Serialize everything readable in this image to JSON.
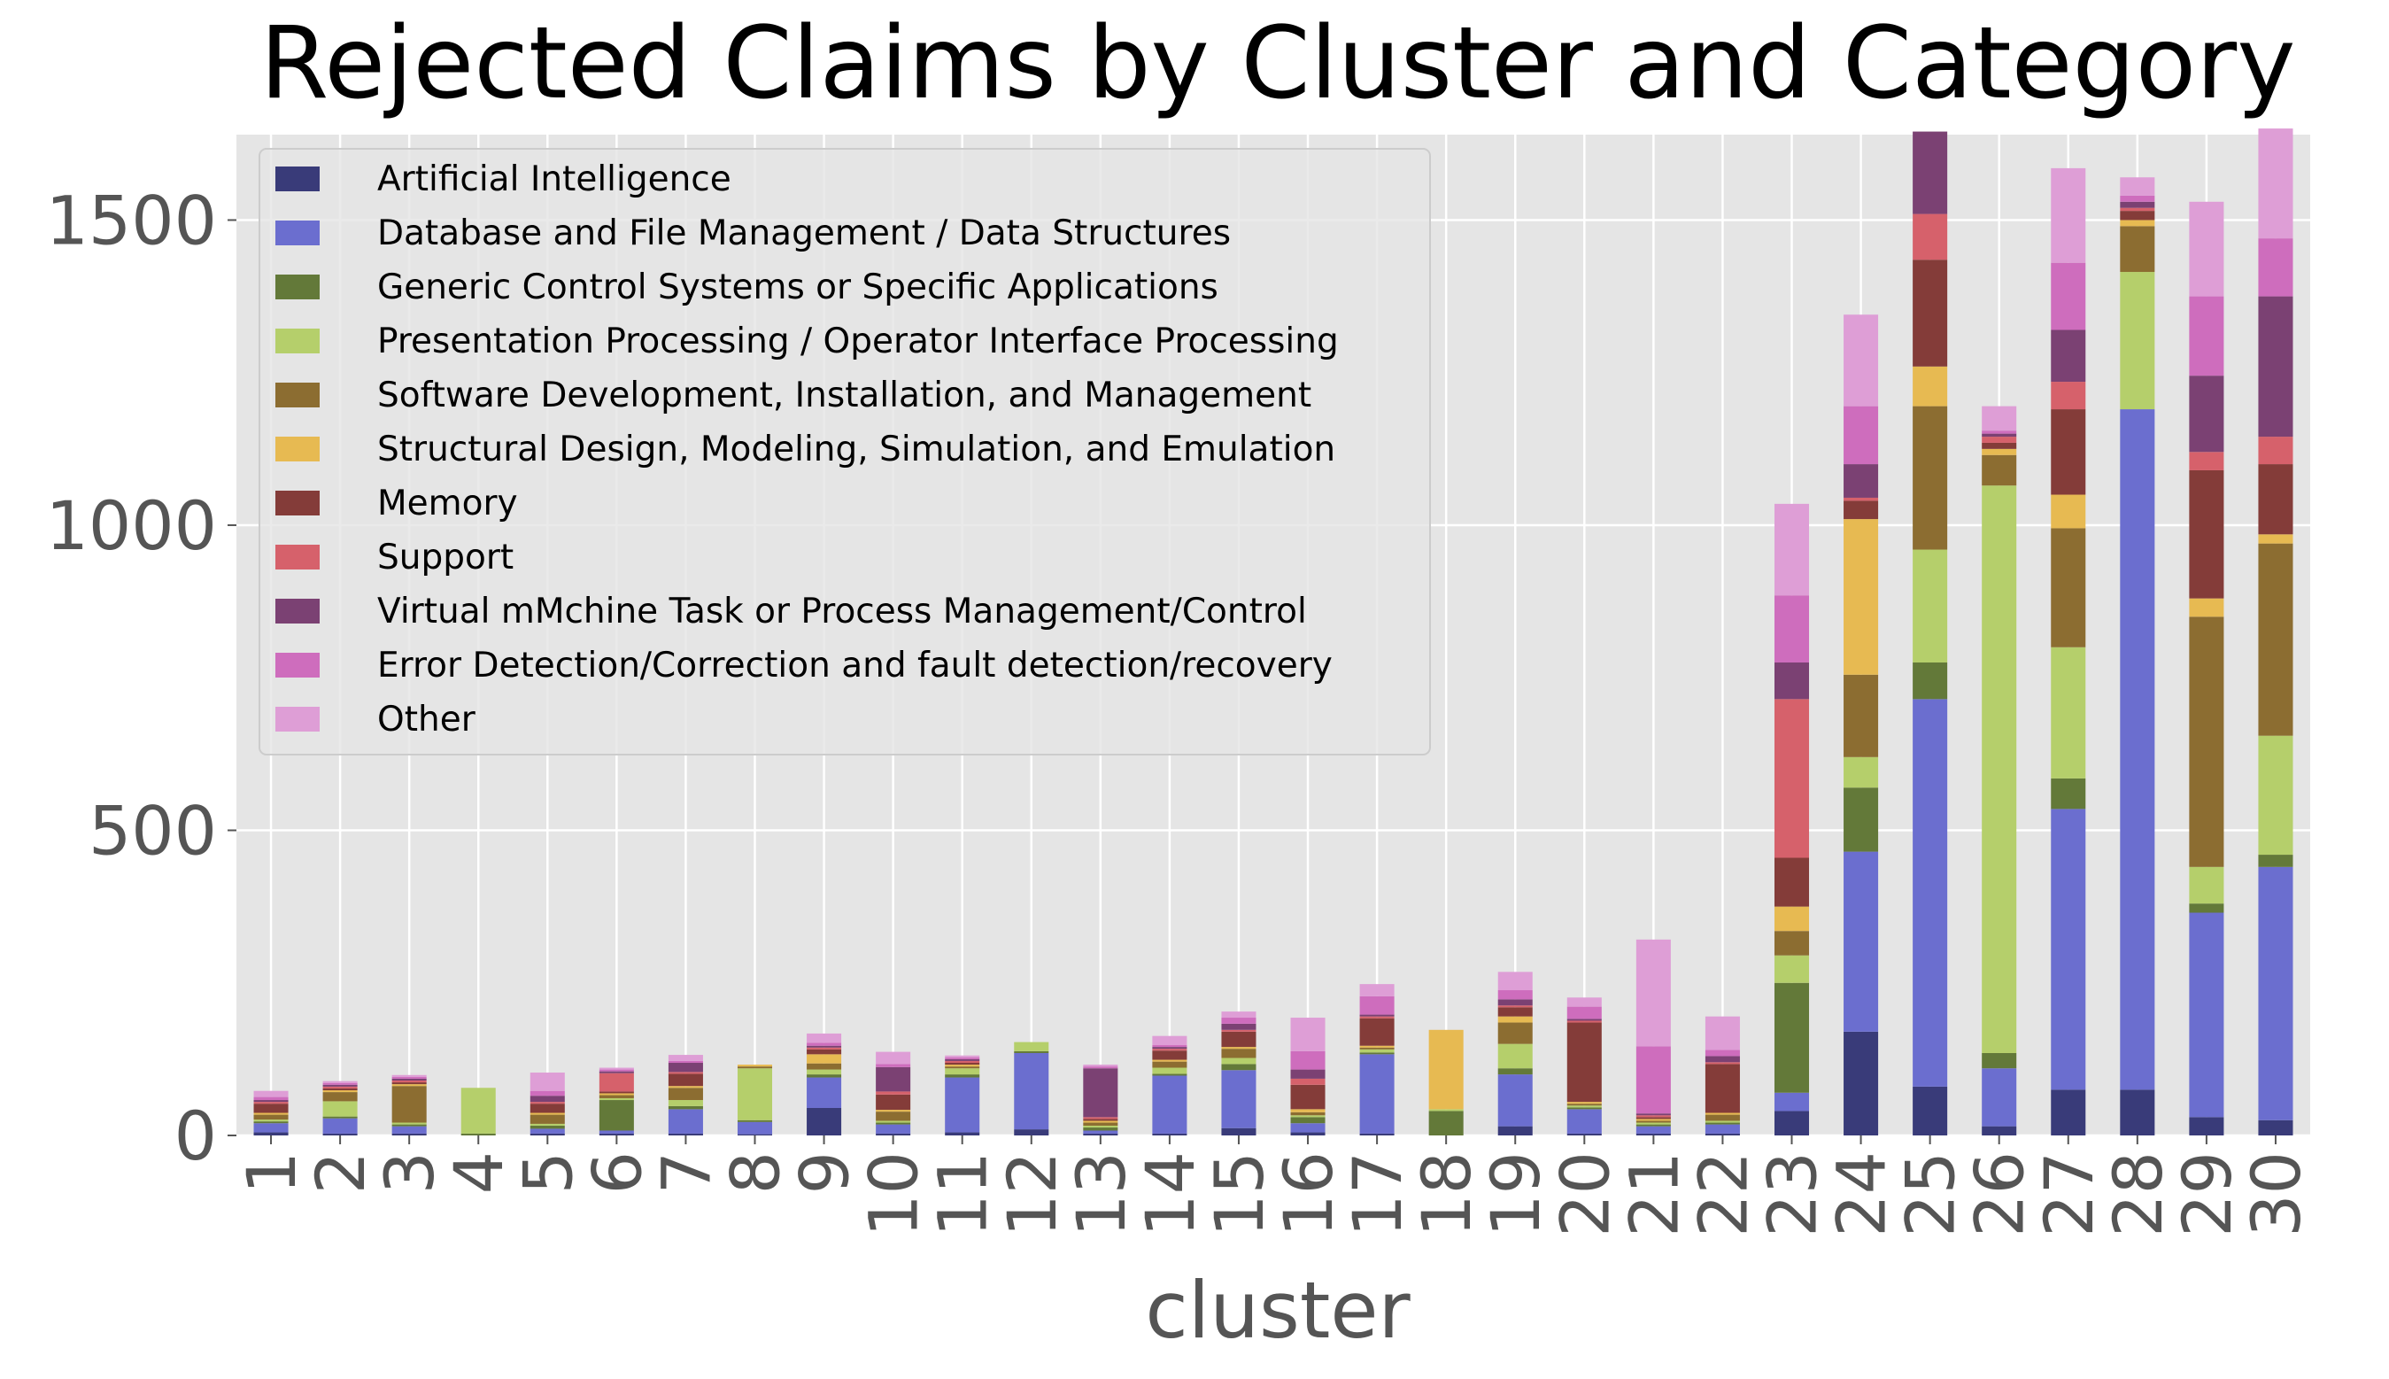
{
  "chart_data": {
    "type": "bar",
    "stacked": true,
    "title": "Rejected Claims by Cluster and Category",
    "xlabel": "cluster",
    "ylabel": "",
    "ylim": [
      0,
      1640
    ],
    "yticks": [
      0,
      500,
      1000,
      1500
    ],
    "grid": true,
    "legend_position": "upper-left",
    "categories": [
      "1",
      "2",
      "3",
      "4",
      "5",
      "6",
      "7",
      "8",
      "9",
      "10",
      "11",
      "12",
      "13",
      "14",
      "15",
      "16",
      "17",
      "18",
      "19",
      "20",
      "21",
      "22",
      "23",
      "24",
      "25",
      "26",
      "27",
      "28",
      "29",
      "30"
    ],
    "series": [
      {
        "name": "Artificial Intelligence",
        "color": "#393b79",
        "values": [
          5,
          3,
          3,
          0,
          3,
          3,
          3,
          2,
          45,
          3,
          5,
          10,
          3,
          3,
          12,
          5,
          3,
          0,
          15,
          3,
          3,
          3,
          40,
          170,
          80,
          15,
          75,
          75,
          30,
          25
        ]
      },
      {
        "name": "Database and File Management / Data Structures",
        "color": "#6b6ecf",
        "values": [
          15,
          25,
          12,
          0,
          8,
          5,
          40,
          20,
          50,
          15,
          90,
          125,
          5,
          95,
          95,
          15,
          130,
          0,
          85,
          40,
          12,
          15,
          30,
          295,
          635,
          95,
          460,
          1115,
          335,
          415
        ]
      },
      {
        "name": "Generic Control Systems or Specific Applications",
        "color": "#637939",
        "values": [
          3,
          3,
          3,
          3,
          5,
          50,
          5,
          3,
          5,
          3,
          5,
          3,
          5,
          3,
          10,
          10,
          3,
          40,
          10,
          3,
          3,
          3,
          180,
          105,
          60,
          25,
          50,
          0,
          15,
          20
        ]
      },
      {
        "name": "Presentation Processing / Operator Interface Processing",
        "color": "#b5cf6b",
        "values": [
          3,
          25,
          3,
          75,
          3,
          3,
          10,
          85,
          8,
          3,
          10,
          15,
          3,
          10,
          10,
          3,
          5,
          3,
          40,
          3,
          3,
          3,
          45,
          50,
          185,
          930,
          215,
          225,
          60,
          195
        ]
      },
      {
        "name": "Software Development, Installation, and Management",
        "color": "#8c6d31",
        "values": [
          8,
          15,
          60,
          0,
          15,
          5,
          20,
          3,
          10,
          15,
          3,
          0,
          5,
          10,
          15,
          5,
          3,
          0,
          35,
          3,
          3,
          10,
          40,
          135,
          235,
          50,
          195,
          75,
          410,
          315
        ]
      },
      {
        "name": "Structural Design, Modeling, Simulation, and Emulation",
        "color": "#e7ba52",
        "values": [
          3,
          3,
          3,
          0,
          3,
          3,
          3,
          3,
          15,
          3,
          3,
          0,
          3,
          3,
          3,
          5,
          3,
          130,
          10,
          3,
          3,
          3,
          40,
          255,
          65,
          10,
          55,
          10,
          30,
          15
        ]
      },
      {
        "name": "Memory",
        "color": "#843c39",
        "values": [
          15,
          3,
          3,
          0,
          15,
          3,
          20,
          0,
          8,
          25,
          3,
          0,
          3,
          15,
          25,
          40,
          45,
          0,
          15,
          130,
          3,
          80,
          80,
          30,
          175,
          10,
          140,
          15,
          210,
          115
        ]
      },
      {
        "name": "Support",
        "color": "#d6616b",
        "values": [
          3,
          3,
          3,
          0,
          3,
          30,
          3,
          0,
          3,
          5,
          3,
          0,
          3,
          3,
          3,
          10,
          3,
          0,
          3,
          3,
          3,
          3,
          260,
          5,
          75,
          10,
          45,
          5,
          30,
          45
        ]
      },
      {
        "name": "Virtual mMchine Task or Process Management/Control",
        "color": "#7b4173",
        "values": [
          3,
          3,
          3,
          0,
          10,
          3,
          15,
          0,
          3,
          40,
          3,
          0,
          80,
          3,
          10,
          15,
          3,
          0,
          10,
          3,
          3,
          10,
          60,
          55,
          135,
          5,
          85,
          10,
          125,
          230
        ]
      },
      {
        "name": "Error Detection/Correction and fault detection/recovery",
        "color": "#ce6dbd",
        "values": [
          5,
          3,
          3,
          0,
          8,
          3,
          3,
          0,
          5,
          5,
          3,
          0,
          3,
          3,
          10,
          30,
          30,
          0,
          15,
          20,
          110,
          10,
          110,
          95,
          0,
          5,
          110,
          10,
          130,
          95
        ]
      },
      {
        "name": "Other",
        "color": "#de9ed6",
        "values": [
          10,
          3,
          3,
          0,
          30,
          3,
          10,
          0,
          15,
          20,
          3,
          0,
          3,
          15,
          10,
          55,
          20,
          0,
          30,
          15,
          175,
          55,
          150,
          150,
          0,
          40,
          155,
          30,
          155,
          180
        ]
      }
    ]
  }
}
